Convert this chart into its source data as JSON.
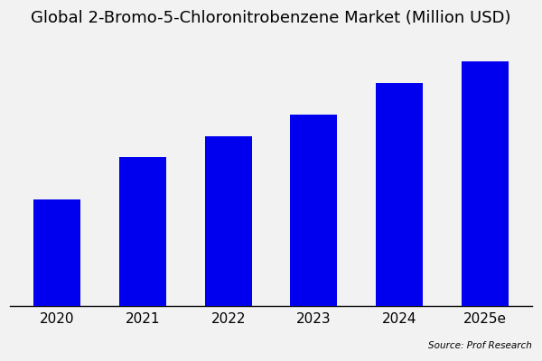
{
  "title": "Global 2-Bromo-5-Chloronitrobenzene Market (Million USD)",
  "categories": [
    "2020",
    "2021",
    "2022",
    "2023",
    "2024",
    "2025e"
  ],
  "values": [
    100,
    140,
    160,
    180,
    210,
    230
  ],
  "bar_color": "#0000EE",
  "background_color": "#f2f2f2",
  "source_text": "Source: Prof Research",
  "title_fontsize": 13,
  "tick_fontsize": 11,
  "bar_width": 0.55,
  "ylim": [
    0,
    255
  ]
}
